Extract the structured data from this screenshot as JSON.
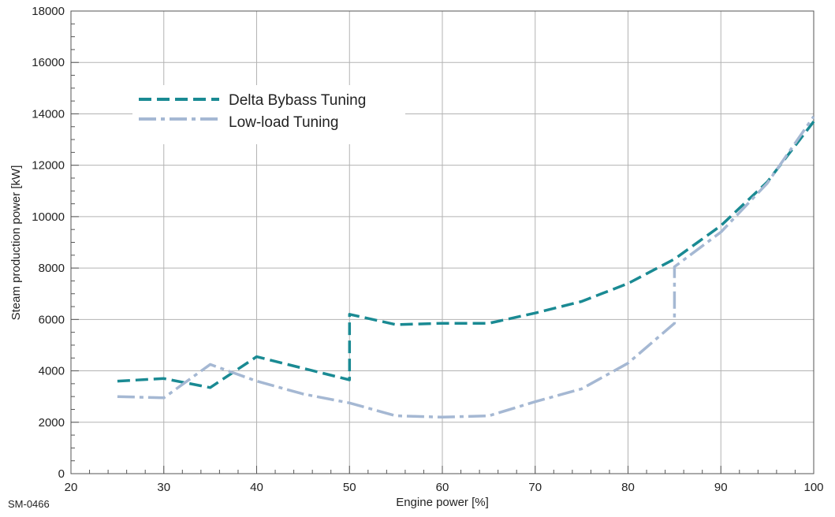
{
  "chart_data": {
    "type": "line",
    "title": "",
    "xlabel": "Engine power [%]",
    "ylabel": "Steam production power [kW]",
    "xlim": [
      20,
      100
    ],
    "ylim": [
      0,
      18000
    ],
    "x_ticks": [
      20,
      30,
      40,
      50,
      60,
      70,
      80,
      90,
      100
    ],
    "y_ticks": [
      0,
      2000,
      4000,
      6000,
      8000,
      10000,
      12000,
      14000,
      16000,
      18000
    ],
    "grid": true,
    "legend_position": "upper-left",
    "series": [
      {
        "name": "Delta Bybass Tuning",
        "color": "#1a8a93",
        "style": "dashed",
        "x": [
          25,
          30,
          35,
          40,
          50,
          50,
          55,
          60,
          65,
          70,
          75,
          80,
          85,
          90,
          95,
          100
        ],
        "y": [
          3600,
          3700,
          3350,
          4550,
          3650,
          6200,
          5800,
          5850,
          5850,
          6250,
          6700,
          7400,
          8350,
          9650,
          11350,
          13700
        ]
      },
      {
        "name": "Low-load Tuning",
        "color": "#a5b8d3",
        "style": "dashdot",
        "x": [
          25,
          30,
          35,
          40,
          45,
          50,
          55,
          60,
          65,
          70,
          75,
          80,
          85,
          85,
          90,
          95,
          100
        ],
        "y": [
          3000,
          2950,
          4250,
          3600,
          3100,
          2750,
          2250,
          2200,
          2250,
          2800,
          3300,
          4300,
          5850,
          8050,
          9400,
          11300,
          13900
        ]
      }
    ]
  },
  "footer": {
    "code": "SM-0466"
  }
}
